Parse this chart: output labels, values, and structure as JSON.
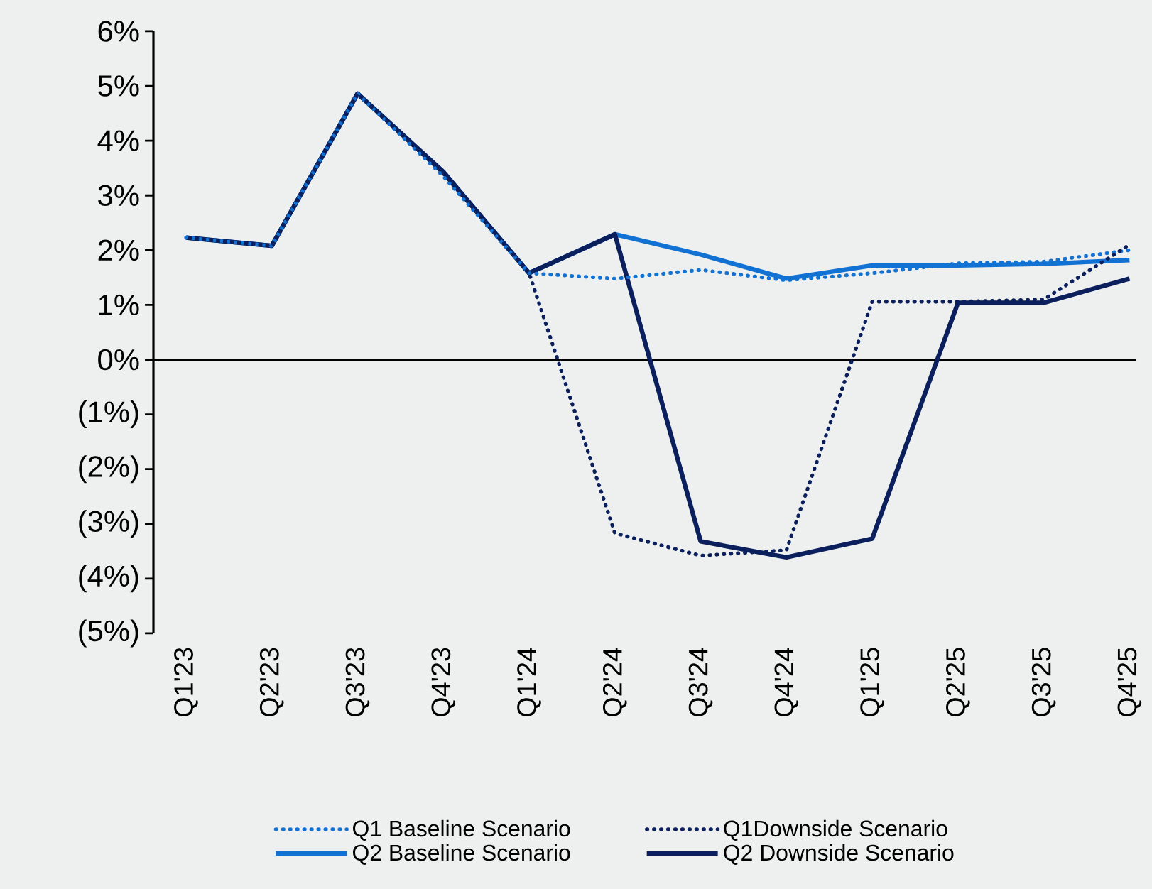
{
  "chart_data": {
    "type": "line",
    "categories": [
      "Q1'23",
      "Q2'23",
      "Q3'23",
      "Q4'23",
      "Q1'24",
      "Q2'24",
      "Q3'24",
      "Q4'24",
      "Q1'25",
      "Q2'25",
      "Q3'25",
      "Q4'25"
    ],
    "series": [
      {
        "name": "Q1 Baseline Scenario",
        "color": "#1172d4",
        "line_style": "dotted",
        "values": [
          2.23,
          2.08,
          4.86,
          3.35,
          1.58,
          1.48,
          1.64,
          1.45,
          1.58,
          1.76,
          1.79,
          2.0
        ]
      },
      {
        "name": "Q1Downside Scenario",
        "color": "#0b1f5c",
        "line_style": "dotted",
        "values": [
          2.23,
          2.08,
          4.86,
          3.4,
          1.58,
          -3.17,
          -3.58,
          -3.48,
          1.06,
          1.06,
          1.1,
          2.1
        ]
      },
      {
        "name": "Q2 Baseline Scenario",
        "color": "#1172d4",
        "line_style": "solid",
        "values": [
          2.23,
          2.08,
          4.86,
          3.43,
          1.58,
          2.29,
          1.92,
          1.48,
          1.72,
          1.72,
          1.75,
          1.82
        ]
      },
      {
        "name": "Q2 Downside Scenario",
        "color": "#0b1f5c",
        "line_style": "solid",
        "values": [
          2.23,
          2.08,
          4.86,
          3.43,
          1.58,
          2.29,
          -3.32,
          -3.61,
          -3.27,
          1.04,
          1.04,
          1.48
        ]
      }
    ],
    "ylim": [
      -5,
      6
    ],
    "yticks": [
      {
        "value": -5,
        "label": "(5%)"
      },
      {
        "value": -4,
        "label": "(4%)"
      },
      {
        "value": -3,
        "label": "(3%)"
      },
      {
        "value": -2,
        "label": "(2%)"
      },
      {
        "value": -1,
        "label": "(1%)"
      },
      {
        "value": 0,
        "label": "0%"
      },
      {
        "value": 1,
        "label": "1%"
      },
      {
        "value": 2,
        "label": "2%"
      },
      {
        "value": 3,
        "label": "3%"
      },
      {
        "value": 4,
        "label": "4%"
      },
      {
        "value": 5,
        "label": "5%"
      },
      {
        "value": 6,
        "label": "6%"
      }
    ],
    "ref_lines": [
      {
        "axis": "y",
        "value": 0,
        "color": "#000000"
      }
    ],
    "legend": "bottom",
    "grid": false,
    "marker": "none"
  }
}
